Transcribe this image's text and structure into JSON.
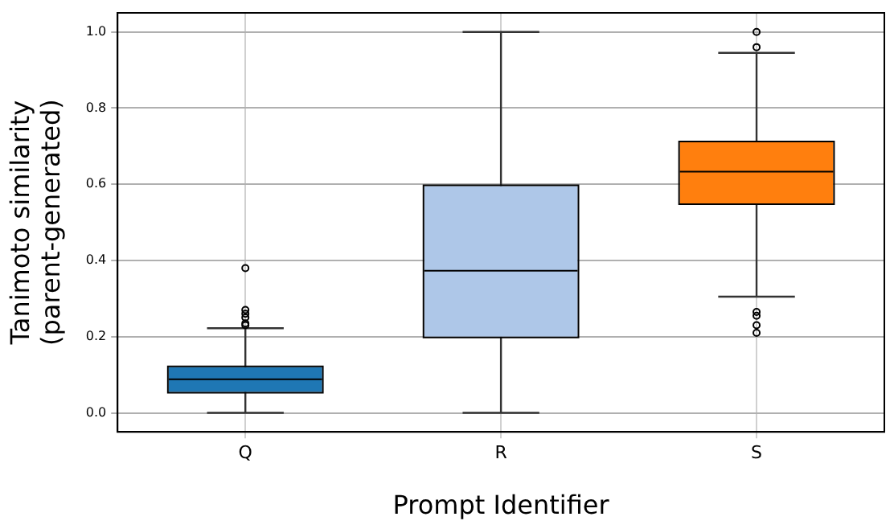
{
  "chart_data": {
    "type": "box",
    "xlabel": "Prompt Identifier",
    "ylabel": "Tanimoto similarity\n(parent-generated)",
    "categories": [
      "Q",
      "R",
      "S"
    ],
    "colors": [
      "#1f77b4",
      "#aec7e8",
      "#ff7f0e"
    ],
    "boxes": [
      {
        "low": 0,
        "q1": 0.055,
        "median": 0.088,
        "q3": 0.12,
        "high": 0.222,
        "outliers": [
          0.23,
          0.235,
          0.25,
          0.26,
          0.27,
          0.38
        ]
      },
      {
        "low": 0,
        "q1": 0.2,
        "median": 0.373,
        "q3": 0.595,
        "high": 1.0
      },
      {
        "low": 0.305,
        "q1": 0.55,
        "median": 0.633,
        "q3": 0.71,
        "high": 0.945,
        "outliers": [
          0.21,
          0.23,
          0.255,
          0.265,
          0.96,
          1.0
        ]
      }
    ],
    "ylim": [
      -0.05,
      1.05
    ],
    "yticks": [
      {
        "value": 0,
        "label": "0.0"
      },
      0.2,
      0.4,
      0.6,
      0.8,
      {
        "value": 1,
        "label": "1.0"
      }
    ],
    "grid": true
  }
}
